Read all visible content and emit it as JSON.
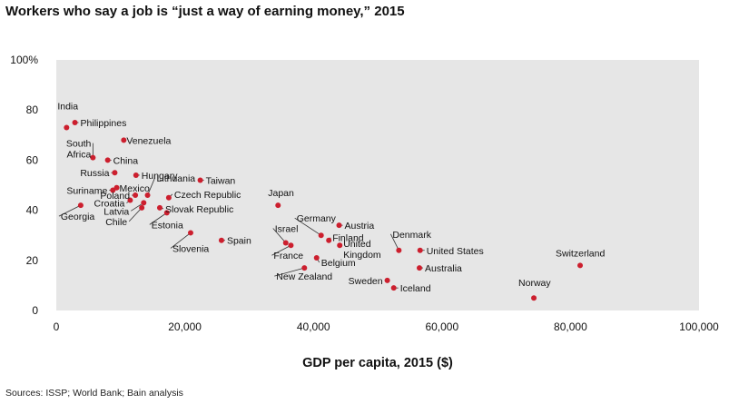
{
  "chart_data": {
    "type": "scatter",
    "title": "Workers who say a job is “just a way of earning money,” 2015",
    "xlabel": "GDP per capita, 2015 ($)",
    "ylabel": "",
    "xlim": [
      0,
      100000
    ],
    "ylim": [
      0,
      100
    ],
    "x_ticks": [
      "0",
      "20,000",
      "40,000",
      "60,000",
      "80,000",
      "100,000"
    ],
    "y_ticks": [
      "0",
      "20",
      "40",
      "60",
      "80",
      "100%"
    ],
    "grid": false,
    "legend": "none",
    "colors": {
      "point": "#cc1f2e",
      "plot_bg": "#e6e6e6",
      "leader": "#333333"
    },
    "points": [
      {
        "label": "India",
        "x": 1600,
        "y": 73
      },
      {
        "label": "Philippines",
        "x": 2900,
        "y": 75
      },
      {
        "label": "Venezuela",
        "x": 10500,
        "y": 68
      },
      {
        "label": "South\nAfrica",
        "x": 5700,
        "y": 61
      },
      {
        "label": "China",
        "x": 8000,
        "y": 60
      },
      {
        "label": "Russia",
        "x": 9100,
        "y": 55
      },
      {
        "label": "Hungary",
        "x": 12400,
        "y": 54
      },
      {
        "label": "Taiwan",
        "x": 22400,
        "y": 52
      },
      {
        "label": "Suriname",
        "x": 8800,
        "y": 48
      },
      {
        "label": "Mexico",
        "x": 9400,
        "y": 49
      },
      {
        "label": "Lithuania",
        "x": 14200,
        "y": 46
      },
      {
        "label": "Poland",
        "x": 12300,
        "y": 46
      },
      {
        "label": "Croatia",
        "x": 11500,
        "y": 44
      },
      {
        "label": "Latvia",
        "x": 13600,
        "y": 43
      },
      {
        "label": "Chile",
        "x": 13300,
        "y": 41
      },
      {
        "label": "Czech Republic",
        "x": 17500,
        "y": 45
      },
      {
        "label": "Slovak Republic",
        "x": 16100,
        "y": 41
      },
      {
        "label": "Estonia",
        "x": 17200,
        "y": 39
      },
      {
        "label": "Georgia",
        "x": 3800,
        "y": 42
      },
      {
        "label": "Slovenia",
        "x": 20900,
        "y": 31
      },
      {
        "label": "Spain",
        "x": 25700,
        "y": 28
      },
      {
        "label": "Japan",
        "x": 34500,
        "y": 42
      },
      {
        "label": "Germany",
        "x": 41200,
        "y": 30
      },
      {
        "label": "Austria",
        "x": 44000,
        "y": 34
      },
      {
        "label": "Finland",
        "x": 42400,
        "y": 28
      },
      {
        "label": "United\nKingdom",
        "x": 44100,
        "y": 26
      },
      {
        "label": "Israel",
        "x": 35700,
        "y": 27
      },
      {
        "label": "France",
        "x": 36500,
        "y": 26
      },
      {
        "label": "Belgium",
        "x": 40500,
        "y": 21
      },
      {
        "label": "New Zealand",
        "x": 38600,
        "y": 17
      },
      {
        "label": "Denmark",
        "x": 53300,
        "y": 24
      },
      {
        "label": "United States",
        "x": 56600,
        "y": 24
      },
      {
        "label": "Australia",
        "x": 56500,
        "y": 17
      },
      {
        "label": "Sweden",
        "x": 51500,
        "y": 12
      },
      {
        "label": "Iceland",
        "x": 52500,
        "y": 9
      },
      {
        "label": "Switzerland",
        "x": 81500,
        "y": 18
      },
      {
        "label": "Norway",
        "x": 74300,
        "y": 5
      }
    ]
  },
  "source_text": "Sources: ISSP; World Bank; Bain analysis"
}
